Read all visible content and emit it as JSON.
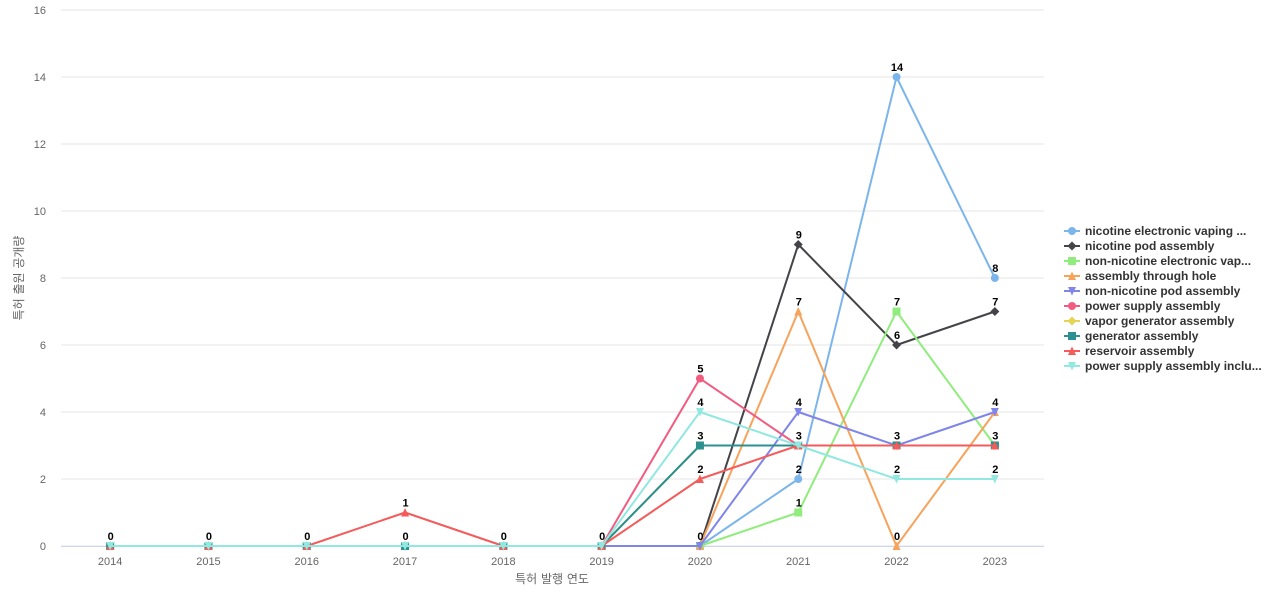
{
  "chart_data": {
    "type": "line",
    "title": "",
    "xlabel": "특허 발행 연도",
    "ylabel": "특허 출원 공개량",
    "ylim": [
      0,
      16
    ],
    "yticks": [
      0,
      2,
      4,
      6,
      8,
      10,
      12,
      14,
      16
    ],
    "grid": true,
    "legend_position": "right",
    "categories": [
      "2014",
      "2015",
      "2016",
      "2017",
      "2018",
      "2019",
      "2020",
      "2021",
      "2022",
      "2023"
    ],
    "series": [
      {
        "name": "nicotine electronic vaping ...",
        "color": "#7cb5ec",
        "marker": "circle",
        "values": [
          0,
          0,
          0,
          0,
          0,
          0,
          0,
          2,
          14,
          8
        ]
      },
      {
        "name": "nicotine pod assembly",
        "color": "#434348",
        "marker": "diamond",
        "values": [
          0,
          0,
          0,
          0,
          0,
          0,
          0,
          9,
          6,
          7
        ]
      },
      {
        "name": "non-nicotine electronic vap...",
        "color": "#90ed7d",
        "marker": "square",
        "values": [
          0,
          0,
          0,
          0,
          0,
          0,
          0,
          1,
          7,
          3
        ]
      },
      {
        "name": "assembly through hole",
        "color": "#f7a35c",
        "marker": "triangle",
        "values": [
          0,
          0,
          0,
          0,
          0,
          0,
          0,
          7,
          0,
          4
        ]
      },
      {
        "name": "non-nicotine pod assembly",
        "color": "#8085e9",
        "marker": "triangle-down",
        "values": [
          0,
          0,
          0,
          0,
          0,
          0,
          0,
          4,
          3,
          4
        ]
      },
      {
        "name": "power supply assembly",
        "color": "#f15c80",
        "marker": "circle",
        "values": [
          0,
          0,
          0,
          0,
          0,
          0,
          5,
          3,
          3,
          3
        ]
      },
      {
        "name": "vapor generator assembly",
        "color": "#e4d354",
        "marker": "diamond",
        "values": [
          0,
          0,
          0,
          0,
          0,
          0,
          3,
          3,
          3,
          3
        ]
      },
      {
        "name": "generator assembly",
        "color": "#2b908f",
        "marker": "square",
        "values": [
          0,
          0,
          0,
          0,
          0,
          0,
          3,
          3,
          3,
          3
        ]
      },
      {
        "name": "reservoir assembly",
        "color": "#f45b5b",
        "marker": "triangle",
        "values": [
          0,
          0,
          0,
          1,
          0,
          0,
          2,
          3,
          3,
          3
        ]
      },
      {
        "name": "power supply assembly inclu...",
        "color": "#91e8e1",
        "marker": "triangle-down",
        "values": [
          0,
          0,
          0,
          0,
          0,
          0,
          4,
          3,
          2,
          2
        ]
      }
    ],
    "data_labels": [
      {
        "category": "2014",
        "value": 0,
        "text": "0"
      },
      {
        "category": "2015",
        "value": 0,
        "text": "0"
      },
      {
        "category": "2016",
        "value": 0,
        "text": "0"
      },
      {
        "category": "2017",
        "value": 1,
        "text": "1"
      },
      {
        "category": "2017",
        "value": 0,
        "text": "0"
      },
      {
        "category": "2018",
        "value": 0,
        "text": "0"
      },
      {
        "category": "2019",
        "value": 0,
        "text": "0"
      },
      {
        "category": "2020",
        "value": 5,
        "text": "5"
      },
      {
        "category": "2020",
        "value": 4,
        "text": "4"
      },
      {
        "category": "2020",
        "value": 3,
        "text": "3"
      },
      {
        "category": "2020",
        "value": 2,
        "text": "2"
      },
      {
        "category": "2020",
        "value": 0,
        "text": "0"
      },
      {
        "category": "2021",
        "value": 9,
        "text": "9"
      },
      {
        "category": "2021",
        "value": 7,
        "text": "7"
      },
      {
        "category": "2021",
        "value": 4,
        "text": "4"
      },
      {
        "category": "2021",
        "value": 3,
        "text": "3"
      },
      {
        "category": "2021",
        "value": 2,
        "text": "2"
      },
      {
        "category": "2021",
        "value": 1,
        "text": "1"
      },
      {
        "category": "2022",
        "value": 14,
        "text": "14"
      },
      {
        "category": "2022",
        "value": 7,
        "text": "7"
      },
      {
        "category": "2022",
        "value": 6,
        "text": "6"
      },
      {
        "category": "2022",
        "value": 3,
        "text": "3"
      },
      {
        "category": "2022",
        "value": 2,
        "text": "2"
      },
      {
        "category": "2022",
        "value": 0,
        "text": "0"
      },
      {
        "category": "2023",
        "value": 8,
        "text": "8"
      },
      {
        "category": "2023",
        "value": 7,
        "text": "7"
      },
      {
        "category": "2023",
        "value": 4,
        "text": "4"
      },
      {
        "category": "2023",
        "value": 3,
        "text": "3"
      },
      {
        "category": "2023",
        "value": 2,
        "text": "2"
      }
    ]
  }
}
